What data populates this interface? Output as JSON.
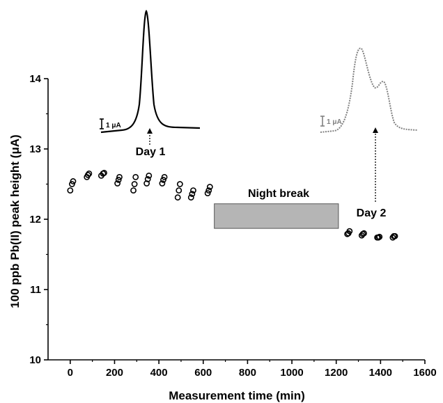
{
  "chart_data": {
    "type": "scatter",
    "xlabel": "Measurement time (min)",
    "ylabel": "100 ppb Pb(II) peak height (μA)",
    "xlim": [
      -100,
      1600
    ],
    "ylim": [
      10,
      14
    ],
    "x_ticks": [
      "0",
      "200",
      "400",
      "600",
      "800",
      "1000",
      "1200",
      "1400",
      "1600"
    ],
    "y_ticks": [
      "10",
      "11",
      "12",
      "13",
      "14"
    ],
    "grid": false,
    "legend": "none",
    "marker": "open-circle",
    "points": [
      {
        "x": 0,
        "y": 12.41
      },
      {
        "x": 8,
        "y": 12.5
      },
      {
        "x": 13,
        "y": 12.54
      },
      {
        "x": 75,
        "y": 12.6
      },
      {
        "x": 80,
        "y": 12.63
      },
      {
        "x": 85,
        "y": 12.65
      },
      {
        "x": 140,
        "y": 12.62
      },
      {
        "x": 148,
        "y": 12.65
      },
      {
        "x": 153,
        "y": 12.66
      },
      {
        "x": 213,
        "y": 12.51
      },
      {
        "x": 218,
        "y": 12.56
      },
      {
        "x": 222,
        "y": 12.6
      },
      {
        "x": 285,
        "y": 12.41
      },
      {
        "x": 290,
        "y": 12.5
      },
      {
        "x": 295,
        "y": 12.6
      },
      {
        "x": 345,
        "y": 12.51
      },
      {
        "x": 350,
        "y": 12.57
      },
      {
        "x": 355,
        "y": 12.62
      },
      {
        "x": 415,
        "y": 12.51
      },
      {
        "x": 420,
        "y": 12.56
      },
      {
        "x": 425,
        "y": 12.6
      },
      {
        "x": 485,
        "y": 12.31
      },
      {
        "x": 490,
        "y": 12.41
      },
      {
        "x": 495,
        "y": 12.5
      },
      {
        "x": 545,
        "y": 12.31
      },
      {
        "x": 550,
        "y": 12.36
      },
      {
        "x": 555,
        "y": 12.41
      },
      {
        "x": 620,
        "y": 12.37
      },
      {
        "x": 625,
        "y": 12.41
      },
      {
        "x": 630,
        "y": 12.46
      },
      {
        "x": 1250,
        "y": 11.79
      },
      {
        "x": 1255,
        "y": 11.8
      },
      {
        "x": 1260,
        "y": 11.83
      },
      {
        "x": 1315,
        "y": 11.77
      },
      {
        "x": 1320,
        "y": 11.79
      },
      {
        "x": 1325,
        "y": 11.8
      },
      {
        "x": 1385,
        "y": 11.74
      },
      {
        "x": 1390,
        "y": 11.74
      },
      {
        "x": 1395,
        "y": 11.75
      },
      {
        "x": 1455,
        "y": 11.74
      },
      {
        "x": 1460,
        "y": 11.76
      },
      {
        "x": 1465,
        "y": 11.76
      }
    ],
    "annotations": {
      "night_break": {
        "label": "Night break",
        "x_range": [
          650,
          1210
        ],
        "y_range": [
          11.87,
          12.22
        ],
        "fill": "#b5b5b5"
      },
      "day1": {
        "label": "Day 1",
        "arrow_x": 340
      },
      "day2": {
        "label": "Day 2",
        "arrow_x": 1355
      },
      "scale_label": "1 μA"
    },
    "colors": {
      "day1_trace": "#000000",
      "day2_trace": "#808080",
      "markers": "#000000"
    }
  }
}
